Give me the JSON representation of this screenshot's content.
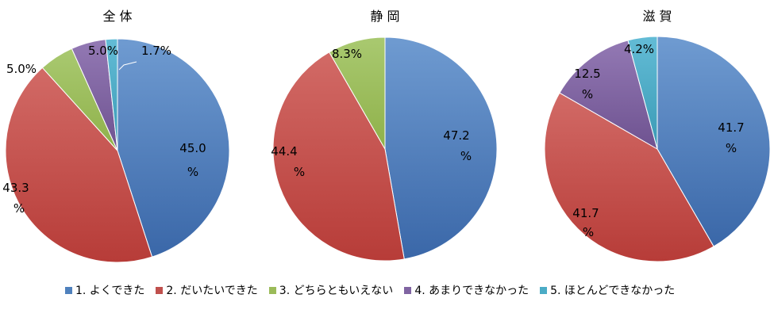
{
  "chart_data": [
    {
      "type": "pie",
      "title": "全 体",
      "categories": [
        "1. よくできた",
        "2. だいたいできた",
        "3. どちらともいえない",
        "4. あまりできなかった",
        "5. ほとんどできなかった"
      ],
      "values": [
        45.0,
        43.3,
        5.0,
        5.0,
        1.7
      ],
      "data_labels": [
        [
          "45.0",
          "%"
        ],
        [
          "43.3",
          "%"
        ],
        [
          "5.0%"
        ],
        [
          "5.0%"
        ],
        [
          "1.7%"
        ]
      ]
    },
    {
      "type": "pie",
      "title": "静 岡",
      "categories": [
        "1. よくできた",
        "2. だいたいできた",
        "3. どちらともいえない",
        "4. あまりできなかった",
        "5. ほとんどできなかった"
      ],
      "values": [
        47.2,
        44.4,
        8.3,
        0,
        0
      ],
      "data_labels": [
        [
          "47.2",
          "%"
        ],
        [
          "44.4",
          "%"
        ],
        [
          "8.3%"
        ],
        [],
        []
      ]
    },
    {
      "type": "pie",
      "title": "滋 賀",
      "categories": [
        "1. よくできた",
        "2. だいたいできた",
        "3. どちらともいえない",
        "4. あまりできなかった",
        "5. ほとんどできなかった"
      ],
      "values": [
        41.7,
        41.7,
        0,
        12.5,
        4.2
      ],
      "data_labels": [
        [
          "41.7",
          "%"
        ],
        [
          "41.7",
          "%"
        ],
        [],
        [
          "12.5",
          "%"
        ],
        [
          "4.2%"
        ]
      ]
    }
  ],
  "legend": [
    {
      "label": "1. よくできた",
      "color": "#4f81bd"
    },
    {
      "label": "2. だいたいできた",
      "color": "#c0504d"
    },
    {
      "label": "3. どちらともいえない",
      "color": "#9bbb59"
    },
    {
      "label": "4. あまりできなかった",
      "color": "#8064a2"
    },
    {
      "label": "5. ほとんどできなかった",
      "color": "#4bacc6"
    }
  ],
  "colors": {
    "light": [
      "#6f9bd1",
      "#d26a66",
      "#a9c970",
      "#9379b4",
      "#63bcd6"
    ],
    "dark": [
      "#3a67a8",
      "#b73c38",
      "#8fb14a",
      "#6e5290",
      "#3a9ab5"
    ]
  }
}
